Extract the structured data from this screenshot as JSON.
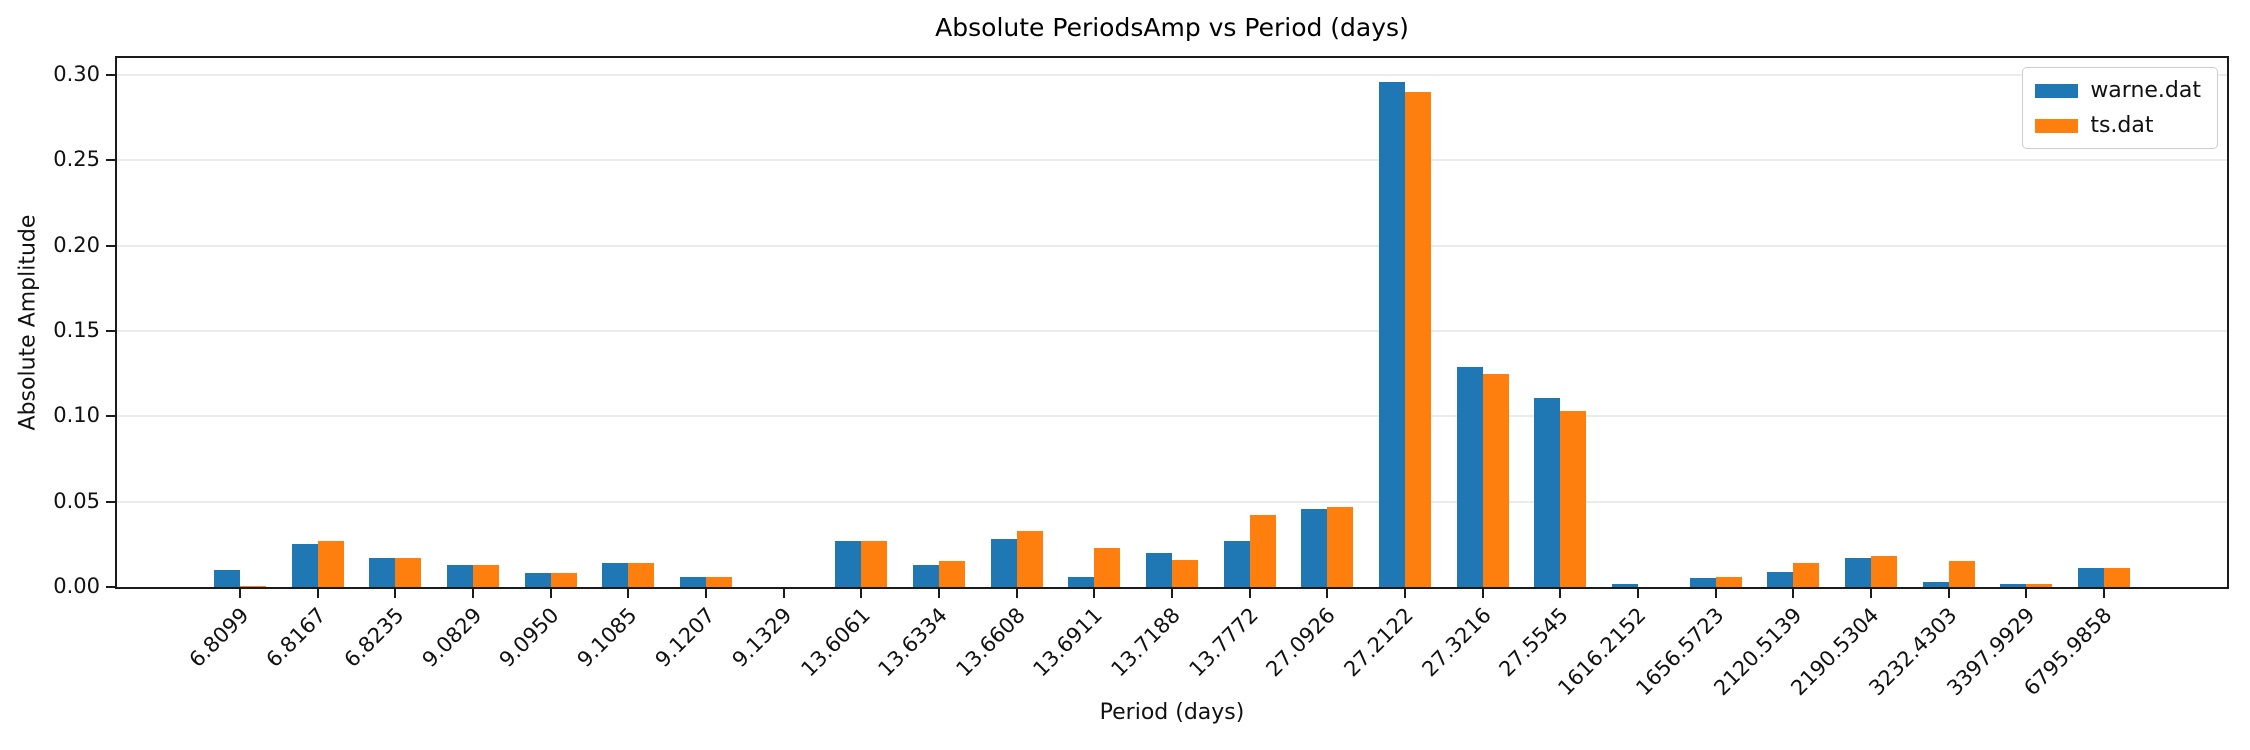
{
  "title": "Absolute PeriodsAmp vs Period (days)",
  "chart_data": {
    "type": "bar",
    "title": "Absolute PeriodsAmp vs Period (days)",
    "xlabel": "Period (days)",
    "ylabel": "Absolute Amplitude",
    "categories": [
      "6.8099",
      "6.8167",
      "6.8235",
      "9.0829",
      "9.0950",
      "9.1085",
      "9.1207",
      "9.1329",
      "13.6061",
      "13.6334",
      "13.6608",
      "13.6911",
      "13.7188",
      "13.7772",
      "27.0926",
      "27.2122",
      "27.3216",
      "27.5545",
      "1616.2152",
      "1656.5723",
      "2120.5139",
      "2190.5304",
      "3232.4303",
      "3397.9929",
      "6795.9858"
    ],
    "series": [
      {
        "name": "warne.dat",
        "color": "#1f77b4",
        "values": [
          0.01,
          0.025,
          0.017,
          0.013,
          0.008,
          0.014,
          0.006,
          0.0,
          0.027,
          0.013,
          0.028,
          0.006,
          0.02,
          0.027,
          0.046,
          0.296,
          0.129,
          0.111,
          0.002,
          0.005,
          0.009,
          0.017,
          0.003,
          0.002,
          0.011
        ]
      },
      {
        "name": "ts.dat",
        "color": "#ff7f0e",
        "values": [
          0.0005,
          0.027,
          0.017,
          0.013,
          0.008,
          0.014,
          0.006,
          0.0,
          0.027,
          0.015,
          0.033,
          0.023,
          0.016,
          0.042,
          0.047,
          0.29,
          0.125,
          0.103,
          0.0,
          0.006,
          0.014,
          0.018,
          0.015,
          0.002,
          0.011
        ]
      }
    ],
    "ylim": [
      0,
      0.31
    ],
    "yticks": [
      0.0,
      0.05,
      0.1,
      0.15,
      0.2,
      0.25,
      0.3
    ],
    "ytick_labels": [
      "0.00",
      "0.05",
      "0.10",
      "0.15",
      "0.20",
      "0.25",
      "0.30"
    ],
    "grid": true,
    "grid_color": "#ebebeb",
    "legend_position": "upper right",
    "xtick_rotation": 45
  }
}
